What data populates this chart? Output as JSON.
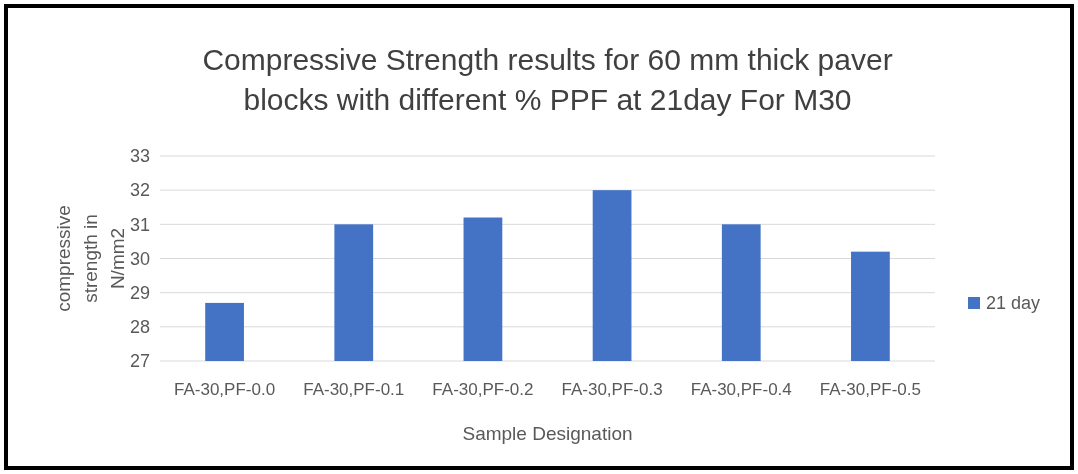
{
  "chart_data": {
    "type": "bar",
    "title": "Compressive Strength results for 60 mm thick paver blocks with different % PPF at 21day For M30",
    "xlabel": "Sample Designation",
    "ylabel": "compressive strength in N/mm2",
    "categories": [
      "FA-30,PF-0.0",
      "FA-30,PF-0.1",
      "FA-30,PF-0.2",
      "FA-30,PF-0.3",
      "FA-30,PF-0.4",
      "FA-30,PF-0.5"
    ],
    "series": [
      {
        "name": "21 day",
        "color": "#4472c4",
        "values": [
          28.7,
          31.0,
          31.2,
          32.0,
          31.0,
          30.2
        ]
      }
    ],
    "ylim": [
      27,
      33
    ],
    "yticks": [
      27,
      28,
      29,
      30,
      31,
      32,
      33
    ],
    "grid": "y",
    "legend": "right"
  }
}
